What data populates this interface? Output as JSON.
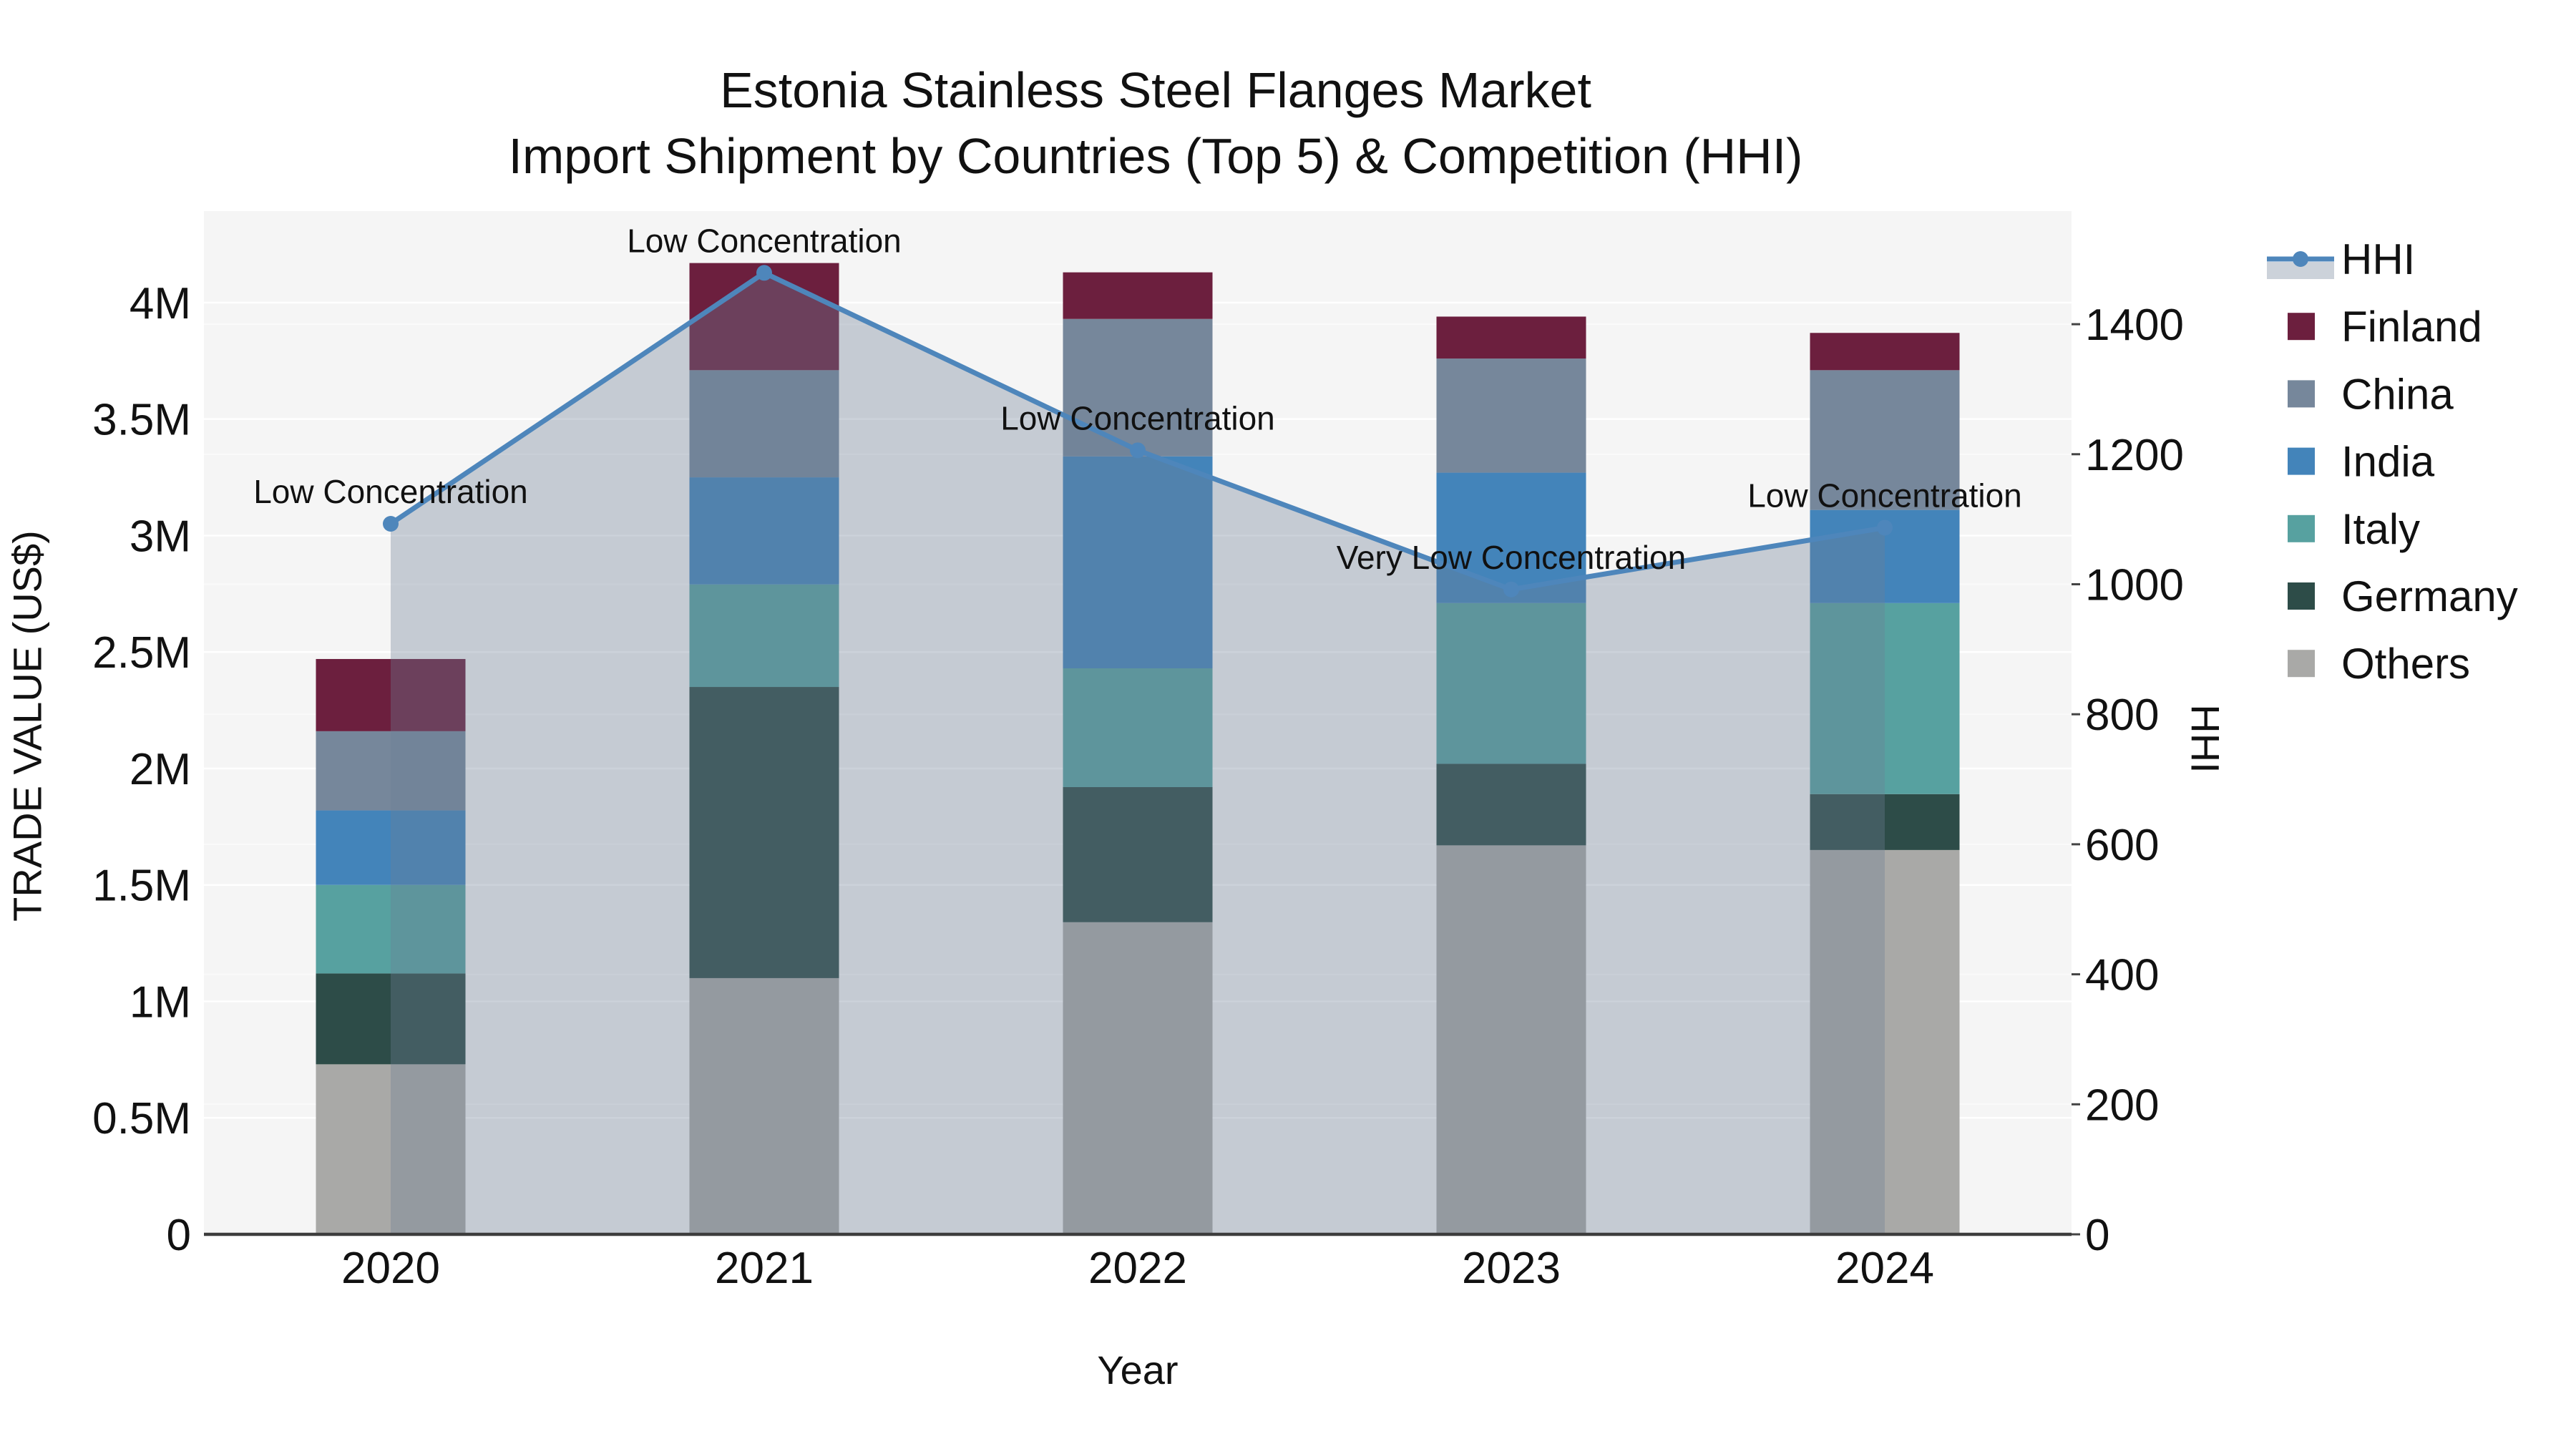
{
  "title": {
    "line1": "Estonia Stainless Steel Flanges Market",
    "line2": "Import Shipment by Countries (Top 5) & Competition (HHI)"
  },
  "axis_titles": {
    "y_left": "TRADE VALUE (US$)",
    "y_right": "HHI",
    "x": "Year"
  },
  "chart_data": {
    "type": "bar+line",
    "subtype": "stacked bars (trade value, left axis) with HHI line+area (right axis)",
    "categories": [
      "2020",
      "2021",
      "2022",
      "2023",
      "2024"
    ],
    "value_unit": "M US$",
    "series": [
      {
        "name": "Others",
        "color": "#a9a9a7",
        "values": [
          0.73,
          1.1,
          1.34,
          1.67,
          1.65
        ]
      },
      {
        "name": "Germany",
        "color": "#2d4c48",
        "values": [
          0.39,
          1.25,
          0.58,
          0.35,
          0.24
        ]
      },
      {
        "name": "Italy",
        "color": "#57a1a0",
        "values": [
          0.38,
          0.44,
          0.51,
          0.69,
          0.82
        ]
      },
      {
        "name": "India",
        "color": "#4384ba",
        "values": [
          0.32,
          0.46,
          0.91,
          0.56,
          0.4
        ]
      },
      {
        "name": "China",
        "color": "#76879b",
        "values": [
          0.34,
          0.46,
          0.59,
          0.49,
          0.6
        ]
      },
      {
        "name": "Finland",
        "color": "#6c1f3e",
        "values": [
          0.31,
          0.46,
          0.2,
          0.18,
          0.16
        ]
      }
    ],
    "bar_totals": [
      2.47,
      4.17,
      4.13,
      3.94,
      3.87
    ],
    "line": {
      "name": "HHI",
      "color": "#4e86bb",
      "area_fill": "rgba(110,126,150,0.35)",
      "values": [
        1093,
        1479,
        1206,
        992,
        1087
      ]
    },
    "annotations": [
      {
        "year": "2020",
        "text": "Low Concentration"
      },
      {
        "year": "2021",
        "text": "Low Concentration"
      },
      {
        "year": "2022",
        "text": "Low Concentration"
      },
      {
        "year": "2023",
        "text": "Very Low Concentration"
      },
      {
        "year": "2024",
        "text": "Low Concentration"
      }
    ],
    "left_axis": {
      "title": "TRADE VALUE (US$)",
      "tick_values": [
        0,
        0.5,
        1,
        1.5,
        2,
        2.5,
        3,
        3.5,
        4
      ],
      "tick_labels": [
        "0",
        "0.5M",
        "1M",
        "1.5M",
        "2M",
        "2.5M",
        "3M",
        "3.5M",
        "4M"
      ],
      "max": 4.393
    },
    "right_axis": {
      "title": "HHI",
      "tick_values": [
        0,
        200,
        400,
        600,
        800,
        1000,
        1200,
        1400
      ],
      "tick_labels": [
        "0",
        "200",
        "400",
        "600",
        "800",
        "1000",
        "1200",
        "1400"
      ],
      "max": 1574
    },
    "x_axis": {
      "title": "Year"
    },
    "legend": [
      "HHI",
      "Finland",
      "China",
      "India",
      "Italy",
      "Germany",
      "Others"
    ],
    "legend_position": "right",
    "grid": true,
    "plot_background": "#f5f5f5"
  }
}
